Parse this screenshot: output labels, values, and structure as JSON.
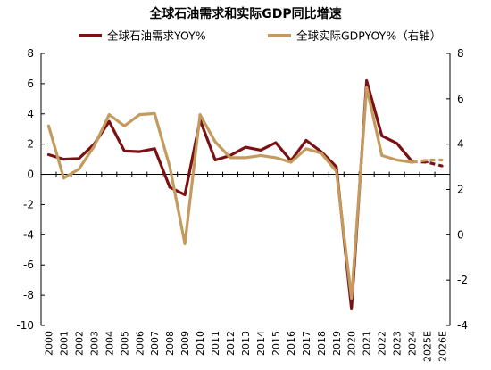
{
  "chart_data": {
    "type": "line",
    "title": "全球石油需求和实际GDP同比增速",
    "categories": [
      "2000",
      "2001",
      "2002",
      "2003",
      "2004",
      "2005",
      "2006",
      "2007",
      "2008",
      "2009",
      "2010",
      "2011",
      "2012",
      "2013",
      "2014",
      "2015",
      "2016",
      "2017",
      "2018",
      "2019",
      "2020",
      "2021",
      "2022",
      "2023",
      "2024",
      "2025E",
      "2026E"
    ],
    "series": [
      {
        "name": "全球石油需求YOY%",
        "axis": "left",
        "color": "#7a1114",
        "values": [
          1.3,
          1.0,
          1.05,
          2.0,
          3.5,
          1.55,
          1.5,
          1.7,
          -0.85,
          -1.35,
          3.6,
          0.95,
          1.25,
          1.8,
          1.6,
          2.1,
          0.9,
          2.25,
          1.5,
          0.5,
          -8.9,
          6.2,
          2.55,
          2.05,
          0.85,
          0.8,
          0.55
        ],
        "dashed_from": "2024"
      },
      {
        "name": "全球实际GDPYOY%（右轴）",
        "axis": "right",
        "color": "#c49a5e",
        "values": [
          4.8,
          2.5,
          2.9,
          3.9,
          5.3,
          4.8,
          5.3,
          5.35,
          3.0,
          -0.4,
          5.3,
          4.1,
          3.4,
          3.4,
          3.5,
          3.4,
          3.2,
          3.8,
          3.6,
          2.8,
          -2.8,
          6.5,
          3.5,
          3.3,
          3.2,
          3.3,
          3.3
        ],
        "dashed_from": "2024"
      }
    ],
    "ylim_left": [
      -10,
      8
    ],
    "yticks_left": [
      8,
      6,
      4,
      2,
      0,
      -2,
      -4,
      -6,
      -8,
      -10
    ],
    "ylim_right": [
      -4,
      8
    ],
    "yticks_right": [
      8,
      6,
      4,
      2,
      0,
      -2,
      -4
    ],
    "grid": false,
    "legend_position": "top"
  }
}
